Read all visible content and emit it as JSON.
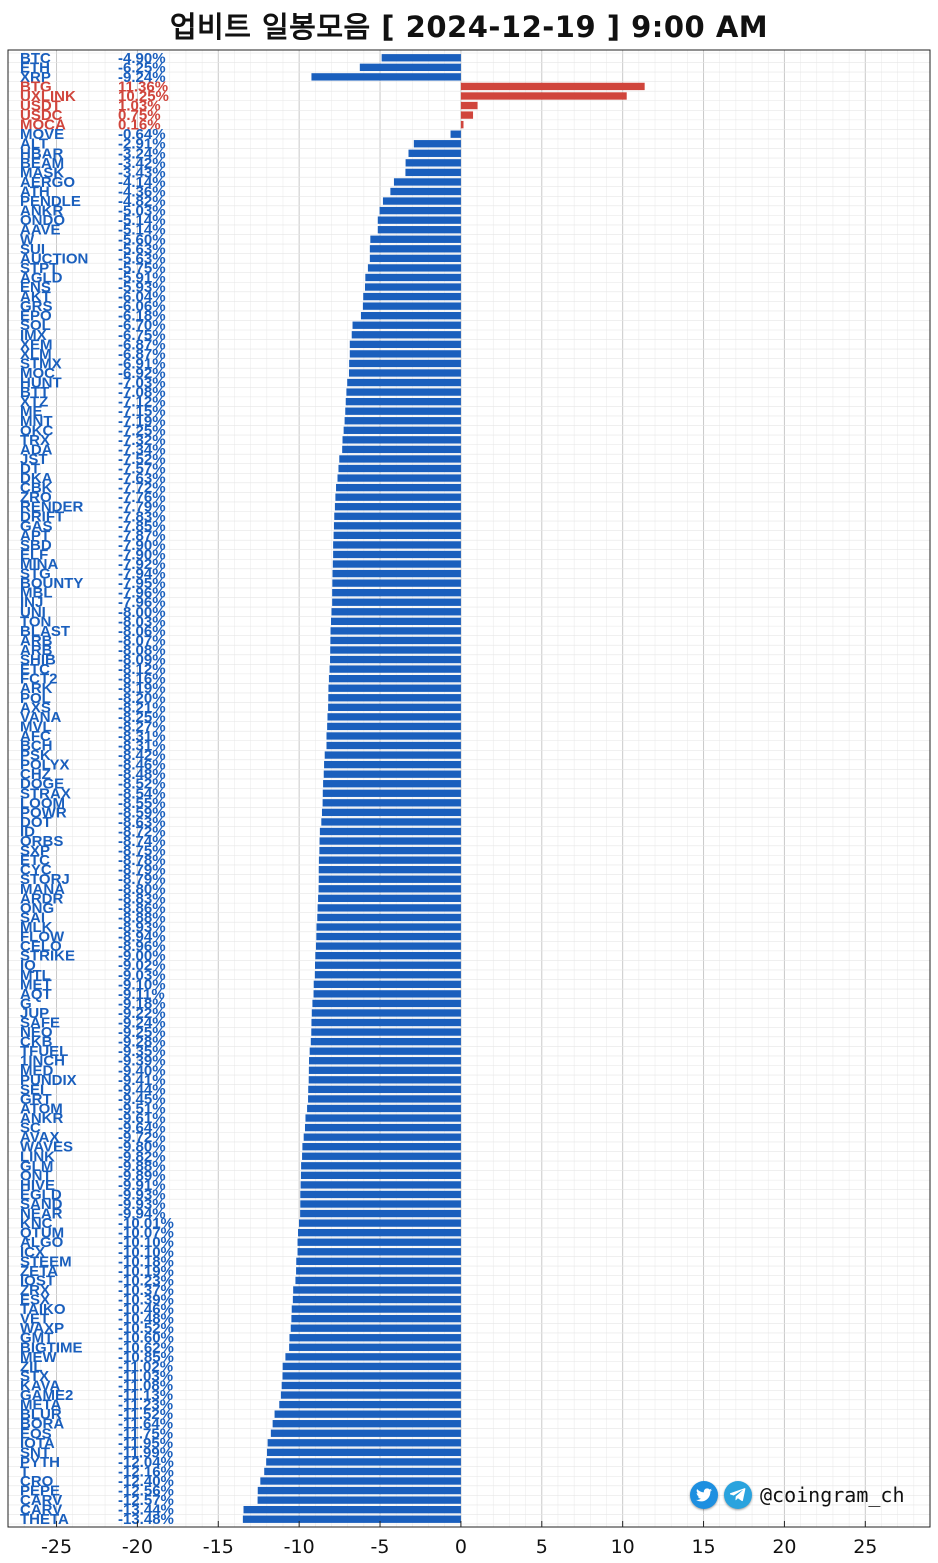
{
  "chart_data": {
    "type": "bar",
    "title": "업비트 일봉모음 [ 2024-12-19 ]  9:00 AM",
    "xlim": [
      -28,
      29
    ],
    "x_ticks": [
      -25,
      -20,
      -15,
      -10,
      -5,
      0,
      5,
      10,
      15,
      20,
      25
    ],
    "grid": true,
    "colors": {
      "positive": "#d0453c",
      "negative": "#1a5fbd"
    },
    "series": [
      {
        "name": "BTC",
        "value_text": "-4.90%"
      },
      {
        "name": "ETH",
        "value_text": "-6.25%"
      },
      {
        "name": "XRP",
        "value_text": "-9.24%"
      },
      {
        "name": "BTG",
        "value_text": "11.36%"
      },
      {
        "name": "UXLINK",
        "value_text": "10.25%"
      },
      {
        "name": "USDT",
        "value_text": "1.03%"
      },
      {
        "name": "USDC",
        "value_text": "0.75%"
      },
      {
        "name": "MOCA",
        "value_text": "0.16%"
      },
      {
        "name": "MOVE",
        "value_text": "-0.64%"
      },
      {
        "name": "ALT",
        "value_text": "-2.91%"
      },
      {
        "name": "HBAR",
        "value_text": "-3.24%"
      },
      {
        "name": "BEAM",
        "value_text": "-3.42%"
      },
      {
        "name": "MASK",
        "value_text": "-3.43%"
      },
      {
        "name": "AERGO",
        "value_text": "-4.14%"
      },
      {
        "name": "ATH",
        "value_text": "-4.36%"
      },
      {
        "name": "PENDLE",
        "value_text": "-4.82%"
      },
      {
        "name": "ANKR",
        "value_text": "-5.03%"
      },
      {
        "name": "ONDO",
        "value_text": "-5.14%"
      },
      {
        "name": "AAVE",
        "value_text": "-5.14%"
      },
      {
        "name": "W",
        "value_text": "-5.60%"
      },
      {
        "name": "SUI",
        "value_text": "-5.63%"
      },
      {
        "name": "AUCTION",
        "value_text": "-5.63%"
      },
      {
        "name": "STPT",
        "value_text": "-5.75%"
      },
      {
        "name": "AGLD",
        "value_text": "-5.91%"
      },
      {
        "name": "ENS",
        "value_text": "-5.93%"
      },
      {
        "name": "AKT",
        "value_text": "-6.04%"
      },
      {
        "name": "GRS",
        "value_text": "-6.06%"
      },
      {
        "name": "EPO",
        "value_text": "-6.18%"
      },
      {
        "name": "SOL",
        "value_text": "-6.70%"
      },
      {
        "name": "IMX",
        "value_text": "-6.75%"
      },
      {
        "name": "XEM",
        "value_text": "-6.87%"
      },
      {
        "name": "XLM",
        "value_text": "-6.87%"
      },
      {
        "name": "STMX",
        "value_text": "-6.91%"
      },
      {
        "name": "MOC",
        "value_text": "-6.92%"
      },
      {
        "name": "HUNT",
        "value_text": "-7.03%"
      },
      {
        "name": "BTT",
        "value_text": "-7.08%"
      },
      {
        "name": "XTZ",
        "value_text": "-7.12%"
      },
      {
        "name": "ME",
        "value_text": "-7.15%"
      },
      {
        "name": "MNT",
        "value_text": "-7.19%"
      },
      {
        "name": "OKC",
        "value_text": "-7.25%"
      },
      {
        "name": "TRX",
        "value_text": "-7.32%"
      },
      {
        "name": "ADA",
        "value_text": "-7.34%"
      },
      {
        "name": "JST",
        "value_text": "-7.52%"
      },
      {
        "name": "DT",
        "value_text": "-7.57%"
      },
      {
        "name": "DKA",
        "value_text": "-7.63%"
      },
      {
        "name": "CBK",
        "value_text": "-7.72%"
      },
      {
        "name": "ZRO",
        "value_text": "-7.76%"
      },
      {
        "name": "RENDER",
        "value_text": "-7.79%"
      },
      {
        "name": "DRIFT",
        "value_text": "-7.83%"
      },
      {
        "name": "GAS",
        "value_text": "-7.85%"
      },
      {
        "name": "APT",
        "value_text": "-7.87%"
      },
      {
        "name": "SBD",
        "value_text": "-7.90%"
      },
      {
        "name": "ELF",
        "value_text": "-7.90%"
      },
      {
        "name": "MINA",
        "value_text": "-7.92%"
      },
      {
        "name": "STG",
        "value_text": "-7.94%"
      },
      {
        "name": "BOUNTY",
        "value_text": "-7.95%"
      },
      {
        "name": "MBL",
        "value_text": "-7.96%"
      },
      {
        "name": "INJ",
        "value_text": "-7.96%"
      },
      {
        "name": "UNI",
        "value_text": "-8.00%"
      },
      {
        "name": "TON",
        "value_text": "-8.03%"
      },
      {
        "name": "BLAST",
        "value_text": "-8.06%"
      },
      {
        "name": "ARB",
        "value_text": "-8.07%"
      },
      {
        "name": "ARB",
        "value_text": "-8.08%"
      },
      {
        "name": "SHIB",
        "value_text": "-8.09%"
      },
      {
        "name": "ETC",
        "value_text": "-8.12%"
      },
      {
        "name": "FCT2",
        "value_text": "-8.16%"
      },
      {
        "name": "ARK",
        "value_text": "-8.19%"
      },
      {
        "name": "POL",
        "value_text": "-8.20%"
      },
      {
        "name": "AXS",
        "value_text": "-8.21%"
      },
      {
        "name": "VANA",
        "value_text": "-8.25%"
      },
      {
        "name": "MVL",
        "value_text": "-8.27%"
      },
      {
        "name": "AFC",
        "value_text": "-8.31%"
      },
      {
        "name": "BCH",
        "value_text": "-8.31%"
      },
      {
        "name": "PSK",
        "value_text": "-8.42%"
      },
      {
        "name": "POLYX",
        "value_text": "-8.46%"
      },
      {
        "name": "CHZ",
        "value_text": "-8.48%"
      },
      {
        "name": "DOGE",
        "value_text": "-8.52%"
      },
      {
        "name": "STRAX",
        "value_text": "-8.54%"
      },
      {
        "name": "LOOM",
        "value_text": "-8.55%"
      },
      {
        "name": "POWR",
        "value_text": "-8.59%"
      },
      {
        "name": "DOT",
        "value_text": "-8.63%"
      },
      {
        "name": "ID",
        "value_text": "-8.72%"
      },
      {
        "name": "ORBS",
        "value_text": "-8.74%"
      },
      {
        "name": "SXP",
        "value_text": "-8.75%"
      },
      {
        "name": "ETC",
        "value_text": "-8.78%"
      },
      {
        "name": "CYC",
        "value_text": "-8.79%"
      },
      {
        "name": "STORJ",
        "value_text": "-8.79%"
      },
      {
        "name": "MANA",
        "value_text": "-8.80%"
      },
      {
        "name": "ARDR",
        "value_text": "-8.83%"
      },
      {
        "name": "ONG",
        "value_text": "-8.86%"
      },
      {
        "name": "SAI",
        "value_text": "-8.88%"
      },
      {
        "name": "MLK",
        "value_text": "-8.93%"
      },
      {
        "name": "FLOW",
        "value_text": "-8.94%"
      },
      {
        "name": "CELO",
        "value_text": "-8.96%"
      },
      {
        "name": "STRIKE",
        "value_text": "-9.00%"
      },
      {
        "name": "IQ",
        "value_text": "-9.02%"
      },
      {
        "name": "MTL",
        "value_text": "-9.03%"
      },
      {
        "name": "MET",
        "value_text": "-9.10%"
      },
      {
        "name": "AQT",
        "value_text": "-9.11%"
      },
      {
        "name": "G",
        "value_text": "-9.18%"
      },
      {
        "name": "JUP",
        "value_text": "-9.22%"
      },
      {
        "name": "SAFE",
        "value_text": "-9.24%"
      },
      {
        "name": "NEO",
        "value_text": "-9.25%"
      },
      {
        "name": "CKB",
        "value_text": "-9.28%"
      },
      {
        "name": "TFUEL",
        "value_text": "-9.35%"
      },
      {
        "name": "1INCH",
        "value_text": "-9.39%"
      },
      {
        "name": "MED",
        "value_text": "-9.40%"
      },
      {
        "name": "PUNDIX",
        "value_text": "-9.41%"
      },
      {
        "name": "SEI",
        "value_text": "-9.44%"
      },
      {
        "name": "GRT",
        "value_text": "-9.45%"
      },
      {
        "name": "ATOM",
        "value_text": "-9.51%"
      },
      {
        "name": "ANKR",
        "value_text": "-9.61%"
      },
      {
        "name": "SC",
        "value_text": "-9.64%"
      },
      {
        "name": "AVAX",
        "value_text": "-9.72%"
      },
      {
        "name": "WAVES",
        "value_text": "-9.80%"
      },
      {
        "name": "LINK",
        "value_text": "-9.82%"
      },
      {
        "name": "GLM",
        "value_text": "-9.88%"
      },
      {
        "name": "ONT",
        "value_text": "-9.89%"
      },
      {
        "name": "HIVE",
        "value_text": "-9.91%"
      },
      {
        "name": "EGLD",
        "value_text": "-9.93%"
      },
      {
        "name": "SAND",
        "value_text": "-9.93%"
      },
      {
        "name": "NEAR",
        "value_text": "-9.94%"
      },
      {
        "name": "KNC",
        "value_text": "-10.01%"
      },
      {
        "name": "QTUM",
        "value_text": "-10.07%"
      },
      {
        "name": "ALGO",
        "value_text": "-10.10%"
      },
      {
        "name": "ICX",
        "value_text": "-10.10%"
      },
      {
        "name": "STEEM",
        "value_text": "-10.18%"
      },
      {
        "name": "ZETA",
        "value_text": "-10.19%"
      },
      {
        "name": "IOST",
        "value_text": "-10.23%"
      },
      {
        "name": "ZRX",
        "value_text": "-10.37%"
      },
      {
        "name": "ESX",
        "value_text": "-10.39%"
      },
      {
        "name": "TAIKO",
        "value_text": "-10.46%"
      },
      {
        "name": "VET",
        "value_text": "-10.48%"
      },
      {
        "name": "WAXP",
        "value_text": "-10.52%"
      },
      {
        "name": "GMT",
        "value_text": "-10.60%"
      },
      {
        "name": "BIGTIME",
        "value_text": "-10.62%"
      },
      {
        "name": "MEW",
        "value_text": "-10.85%"
      },
      {
        "name": "ZIL",
        "value_text": "-11.02%"
      },
      {
        "name": "STX",
        "value_text": "-11.03%"
      },
      {
        "name": "KAVA",
        "value_text": "-11.08%"
      },
      {
        "name": "GAME2",
        "value_text": "-11.13%"
      },
      {
        "name": "META",
        "value_text": "-11.23%"
      },
      {
        "name": "BLUR",
        "value_text": "-11.52%"
      },
      {
        "name": "BORA",
        "value_text": "-11.64%"
      },
      {
        "name": "EOS",
        "value_text": "-11.75%"
      },
      {
        "name": "IOTA",
        "value_text": "-11.95%"
      },
      {
        "name": "SNT",
        "value_text": "-11.99%"
      },
      {
        "name": "PYTH",
        "value_text": "-12.04%"
      },
      {
        "name": "T",
        "value_text": "-12.16%"
      },
      {
        "name": "CRO",
        "value_text": "-12.40%"
      },
      {
        "name": "PEPE",
        "value_text": "-12.56%"
      },
      {
        "name": "CARV",
        "value_text": "-12.57%"
      },
      {
        "name": "CARV",
        "value_text": "-13.44%"
      },
      {
        "name": "THETA",
        "value_text": "-13.48%"
      }
    ]
  },
  "watermark": {
    "twitter_icon": "twitter-icon",
    "telegram_icon": "telegram-icon",
    "handle": "@coingram_ch"
  }
}
